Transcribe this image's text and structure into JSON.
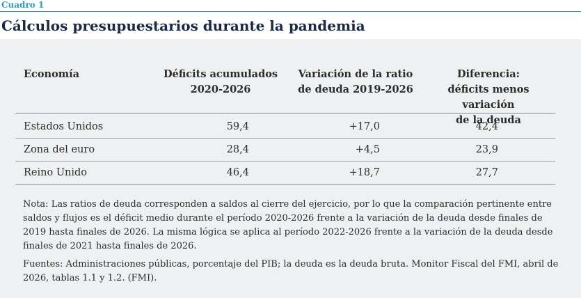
{
  "box_label": "Cuadro 1",
  "title": "Cálculos presupuestarios durante la pandemia",
  "columns": {
    "economy": "Economía",
    "deficits": [
      "Déficits acumulados",
      "2020-2026"
    ],
    "variation": [
      "Variación de la ratio",
      "de deuda 2019-2026"
    ],
    "difference": [
      "Diferencia:",
      "déficits menos variación",
      "de la deuda"
    ]
  },
  "rows": [
    {
      "economy": "Estados Unidos",
      "deficits": "59,4",
      "variation": "+17,0",
      "difference": "42,4"
    },
    {
      "economy": "Zona del euro",
      "deficits": "28,4",
      "variation": "+4,5",
      "difference": "23,9"
    },
    {
      "economy": "Reino Unido",
      "deficits": "46,4",
      "variation": "+18,7",
      "difference": "27,7"
    }
  ],
  "note": "Nota: Las ratios de deuda corresponden a saldos al cierre del ejercicio, por lo que la comparación pertinente entre saldos y flujos es el déficit medio durante el período 2020-2026 frente a la variación de la deuda desde finales de 2019 hasta finales de 2026. La misma lógica se aplica al período 2022-2026 frente a la variación de la deuda desde finales de 2021 hasta finales de 2026.",
  "sources": "Fuentes: Administraciones públicas, porcentaje del PIB; la deuda es la deuda bruta. Monitor Fiscal del FMI, abril de 2026, tablas 1.1 y 1.2. (FMI)."
}
